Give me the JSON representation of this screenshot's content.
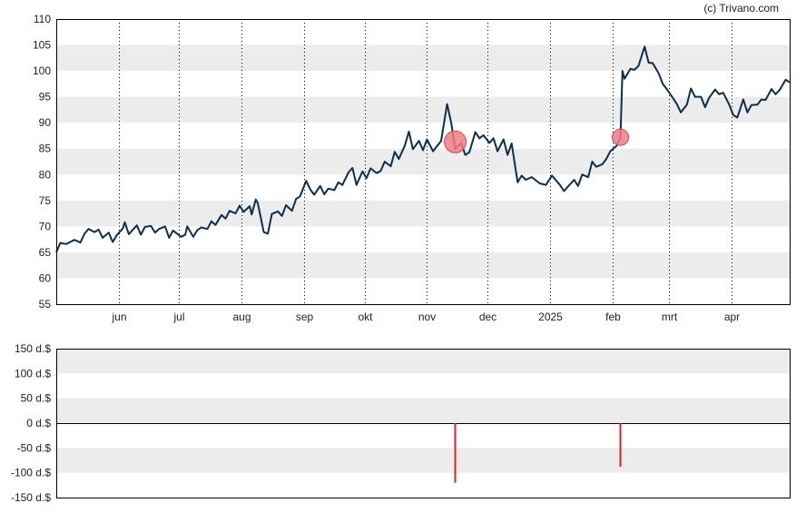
{
  "credit": "(c) Trivano.com",
  "colors": {
    "line": "#0d2f4f",
    "band": "#ececec",
    "marker": "#f07c85",
    "marker_edge": "#d9464f",
    "bar": "#e0202a",
    "axis": "#000000"
  },
  "chart_data": [
    {
      "type": "line",
      "title": "",
      "ylim": [
        55,
        110
      ],
      "yticks": [
        "110",
        "105",
        "100",
        "95",
        "90",
        "85",
        "80",
        "75",
        "70",
        "65",
        "60",
        "55"
      ],
      "x_range": [
        "2024-05-01",
        "2025-04-30"
      ],
      "month_ticks": [
        {
          "label": "jun",
          "date": "2024-06-01"
        },
        {
          "label": "jul",
          "date": "2024-07-01"
        },
        {
          "label": "aug",
          "date": "2024-08-01"
        },
        {
          "label": "sep",
          "date": "2024-09-01"
        },
        {
          "label": "okt",
          "date": "2024-10-01"
        },
        {
          "label": "nov",
          "date": "2024-11-01"
        },
        {
          "label": "dec",
          "date": "2024-12-01"
        },
        {
          "label": "2025",
          "date": "2025-01-01"
        },
        {
          "label": "feb",
          "date": "2025-02-01"
        },
        {
          "label": "mrt",
          "date": "2025-03-01"
        },
        {
          "label": "apr",
          "date": "2025-04-01"
        }
      ],
      "series": [
        {
          "points": [
            [
              "2024-05-01",
              65.0
            ],
            [
              "2024-05-03",
              66.8
            ],
            [
              "2024-05-06",
              66.6
            ],
            [
              "2024-05-08",
              67.0
            ],
            [
              "2024-05-10",
              67.4
            ],
            [
              "2024-05-13",
              66.9
            ],
            [
              "2024-05-15",
              68.6
            ],
            [
              "2024-05-17",
              69.5
            ],
            [
              "2024-05-20",
              68.9
            ],
            [
              "2024-05-22",
              69.4
            ],
            [
              "2024-05-24",
              67.8
            ],
            [
              "2024-05-27",
              68.8
            ],
            [
              "2024-05-29",
              67.0
            ],
            [
              "2024-05-31",
              68.3
            ],
            [
              "2024-06-03",
              69.6
            ],
            [
              "2024-06-04",
              70.8
            ],
            [
              "2024-06-06",
              68.5
            ],
            [
              "2024-06-10",
              70.2
            ],
            [
              "2024-06-12",
              68.4
            ],
            [
              "2024-06-14",
              69.9
            ],
            [
              "2024-06-17",
              70.1
            ],
            [
              "2024-06-19",
              68.8
            ],
            [
              "2024-06-21",
              69.5
            ],
            [
              "2024-06-24",
              70.0
            ],
            [
              "2024-06-26",
              67.8
            ],
            [
              "2024-06-28",
              69.2
            ],
            [
              "2024-07-02",
              68.0
            ],
            [
              "2024-07-04",
              68.4
            ],
            [
              "2024-07-05",
              70.0
            ],
            [
              "2024-07-08",
              68.0
            ],
            [
              "2024-07-10",
              69.3
            ],
            [
              "2024-07-12",
              69.8
            ],
            [
              "2024-07-15",
              69.5
            ],
            [
              "2024-07-17",
              71.0
            ],
            [
              "2024-07-19",
              70.3
            ],
            [
              "2024-07-22",
              72.2
            ],
            [
              "2024-07-24",
              71.5
            ],
            [
              "2024-07-26",
              73.0
            ],
            [
              "2024-07-29",
              72.5
            ],
            [
              "2024-07-31",
              74.0
            ],
            [
              "2024-08-02",
              72.8
            ],
            [
              "2024-08-05",
              73.9
            ],
            [
              "2024-08-06",
              72.3
            ],
            [
              "2024-08-08",
              75.2
            ],
            [
              "2024-08-09",
              74.5
            ],
            [
              "2024-08-12",
              68.9
            ],
            [
              "2024-08-14",
              68.6
            ],
            [
              "2024-08-16",
              72.4
            ],
            [
              "2024-08-19",
              72.9
            ],
            [
              "2024-08-21",
              72.0
            ],
            [
              "2024-08-23",
              74.1
            ],
            [
              "2024-08-26",
              73.0
            ],
            [
              "2024-08-28",
              75.3
            ],
            [
              "2024-08-30",
              75.8
            ],
            [
              "2024-09-02",
              78.8
            ],
            [
              "2024-09-04",
              77.2
            ],
            [
              "2024-09-06",
              76.1
            ],
            [
              "2024-09-09",
              77.8
            ],
            [
              "2024-09-11",
              76.2
            ],
            [
              "2024-09-13",
              77.3
            ],
            [
              "2024-09-16",
              77.0
            ],
            [
              "2024-09-18",
              78.5
            ],
            [
              "2024-09-20",
              78.0
            ],
            [
              "2024-09-23",
              80.4
            ],
            [
              "2024-09-25",
              81.3
            ],
            [
              "2024-09-27",
              78.0
            ],
            [
              "2024-09-30",
              80.6
            ],
            [
              "2024-10-02",
              79.3
            ],
            [
              "2024-10-04",
              81.2
            ],
            [
              "2024-10-07",
              80.3
            ],
            [
              "2024-10-09",
              80.7
            ],
            [
              "2024-10-11",
              82.5
            ],
            [
              "2024-10-14",
              81.6
            ],
            [
              "2024-10-16",
              84.4
            ],
            [
              "2024-10-18",
              83.0
            ],
            [
              "2024-10-21",
              85.6
            ],
            [
              "2024-10-23",
              88.3
            ],
            [
              "2024-10-25",
              84.9
            ],
            [
              "2024-10-28",
              86.5
            ],
            [
              "2024-10-30",
              84.7
            ],
            [
              "2024-11-01",
              86.8
            ],
            [
              "2024-11-04",
              84.5
            ],
            [
              "2024-11-06",
              85.5
            ],
            [
              "2024-11-08",
              86.5
            ],
            [
              "2024-11-11",
              93.6
            ],
            [
              "2024-11-13",
              90.0
            ],
            [
              "2024-11-15",
              85.0
            ],
            [
              "2024-11-18",
              86.0
            ],
            [
              "2024-11-20",
              83.8
            ],
            [
              "2024-11-22",
              84.3
            ],
            [
              "2024-11-25",
              88.2
            ],
            [
              "2024-11-27",
              87.0
            ],
            [
              "2024-11-29",
              87.6
            ],
            [
              "2024-12-02",
              86.1
            ],
            [
              "2024-12-04",
              87.0
            ],
            [
              "2024-12-06",
              84.5
            ],
            [
              "2024-12-09",
              86.8
            ],
            [
              "2024-12-11",
              83.8
            ],
            [
              "2024-12-13",
              86.0
            ],
            [
              "2024-12-16",
              78.5
            ],
            [
              "2024-12-18",
              79.8
            ],
            [
              "2024-12-20",
              79.0
            ],
            [
              "2024-12-23",
              79.5
            ],
            [
              "2024-12-27",
              78.3
            ],
            [
              "2024-12-30",
              78.0
            ],
            [
              "2025-01-02",
              79.8
            ],
            [
              "2025-01-06",
              78.0
            ],
            [
              "2025-01-08",
              76.8
            ],
            [
              "2025-01-10",
              77.7
            ],
            [
              "2025-01-13",
              79.0
            ],
            [
              "2025-01-15",
              77.8
            ],
            [
              "2025-01-17",
              80.0
            ],
            [
              "2025-01-20",
              79.5
            ],
            [
              "2025-01-22",
              82.5
            ],
            [
              "2025-01-24",
              81.5
            ],
            [
              "2025-01-27",
              82.0
            ],
            [
              "2025-01-29",
              83.0
            ],
            [
              "2025-01-31",
              84.5
            ],
            [
              "2025-02-03",
              85.5
            ],
            [
              "2025-02-05",
              87.0
            ],
            [
              "2025-02-06",
              100.0
            ],
            [
              "2025-02-07",
              98.5
            ],
            [
              "2025-02-10",
              100.4
            ],
            [
              "2025-02-12",
              100.2
            ],
            [
              "2025-02-14",
              101.0
            ],
            [
              "2025-02-17",
              104.7
            ],
            [
              "2025-02-19",
              101.6
            ],
            [
              "2025-02-21",
              101.5
            ],
            [
              "2025-02-24",
              99.5
            ],
            [
              "2025-02-26",
              97.5
            ],
            [
              "2025-02-28",
              96.5
            ],
            [
              "2025-03-03",
              94.8
            ],
            [
              "2025-03-05",
              93.6
            ],
            [
              "2025-03-07",
              92.0
            ],
            [
              "2025-03-10",
              93.5
            ],
            [
              "2025-03-12",
              96.6
            ],
            [
              "2025-03-14",
              95.0
            ],
            [
              "2025-03-17",
              95.0
            ],
            [
              "2025-03-19",
              93.0
            ],
            [
              "2025-03-21",
              94.8
            ],
            [
              "2025-03-24",
              96.4
            ],
            [
              "2025-03-26",
              95.5
            ],
            [
              "2025-03-28",
              95.8
            ],
            [
              "2025-03-31",
              93.5
            ],
            [
              "2025-04-02",
              91.5
            ],
            [
              "2025-04-04",
              91.0
            ],
            [
              "2025-04-07",
              94.5
            ],
            [
              "2025-04-09",
              92.0
            ],
            [
              "2025-04-11",
              93.4
            ],
            [
              "2025-04-14",
              93.5
            ],
            [
              "2025-04-16",
              94.5
            ],
            [
              "2025-04-18",
              94.4
            ],
            [
              "2025-04-21",
              96.5
            ],
            [
              "2025-04-23",
              95.5
            ],
            [
              "2025-04-25",
              96.3
            ],
            [
              "2025-04-28",
              98.3
            ],
            [
              "2025-04-30",
              97.8
            ]
          ]
        }
      ],
      "markers": [
        {
          "date": "2024-11-15",
          "value": 86.3,
          "size": "large"
        },
        {
          "date": "2025-02-05",
          "value": 87.2,
          "size": "small"
        }
      ]
    },
    {
      "type": "bar",
      "title": "",
      "ylim": [
        -150,
        150
      ],
      "yticks": [
        "150 d.$",
        "100 d.$",
        "50 d.$",
        "0 d.$",
        "-50 d.$",
        "-100 d.$",
        "-150 d.$"
      ],
      "x_range": [
        "2024-05-01",
        "2025-04-30"
      ],
      "bars": [
        {
          "date": "2024-11-15",
          "value": -120
        },
        {
          "date": "2025-02-05",
          "value": -88
        }
      ]
    }
  ]
}
